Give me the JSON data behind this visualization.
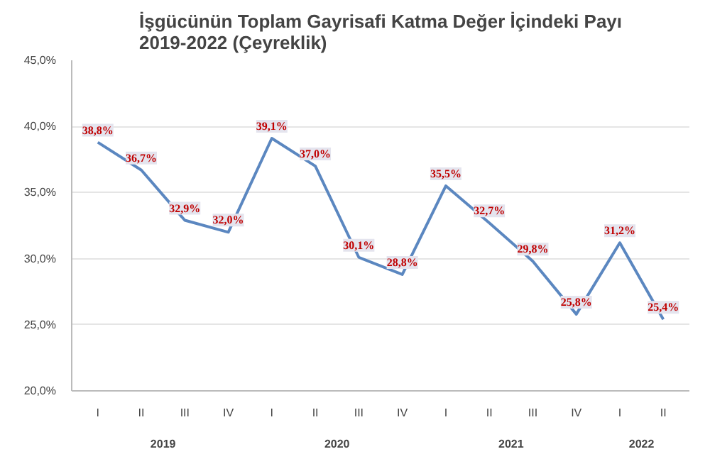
{
  "chart_data": {
    "type": "line",
    "title": "İşgücünün Toplam Gayrisafi Katma Değer İçindeki Payı\n2019-2022 (Çeyreklik)",
    "categories": [
      "I",
      "II",
      "III",
      "IV",
      "I",
      "II",
      "III",
      "IV",
      "I",
      "II",
      "III",
      "IV",
      "I",
      "II"
    ],
    "series": [
      {
        "color": "#5b87c0",
        "values": [
          38.8,
          36.7,
          32.9,
          32.0,
          39.1,
          37.0,
          30.1,
          28.8,
          35.5,
          32.7,
          29.8,
          25.8,
          31.2,
          25.4
        ],
        "value_labels": [
          "38,8%",
          "36,7%",
          "32,9%",
          "32,0%",
          "39,1%",
          "37,0%",
          "30,1%",
          "28,8%",
          "35,5%",
          "32,7%",
          "29,8%",
          "25,8%",
          "31,2%",
          "25,4%"
        ]
      }
    ],
    "ylim": [
      20,
      45
    ],
    "yticks": [
      {
        "value": 20,
        "label": "20,0%"
      },
      {
        "value": 25,
        "label": "25,0%"
      },
      {
        "value": 30,
        "label": "30,0%"
      },
      {
        "value": 35,
        "label": "35,0%"
      },
      {
        "value": 40,
        "label": "40,0%"
      },
      {
        "value": 45,
        "label": "45,0%"
      }
    ],
    "annotations": [
      "2019",
      "2020",
      "2021",
      "2022"
    ],
    "grid": "y",
    "marker": "none",
    "line_style": "solid"
  }
}
